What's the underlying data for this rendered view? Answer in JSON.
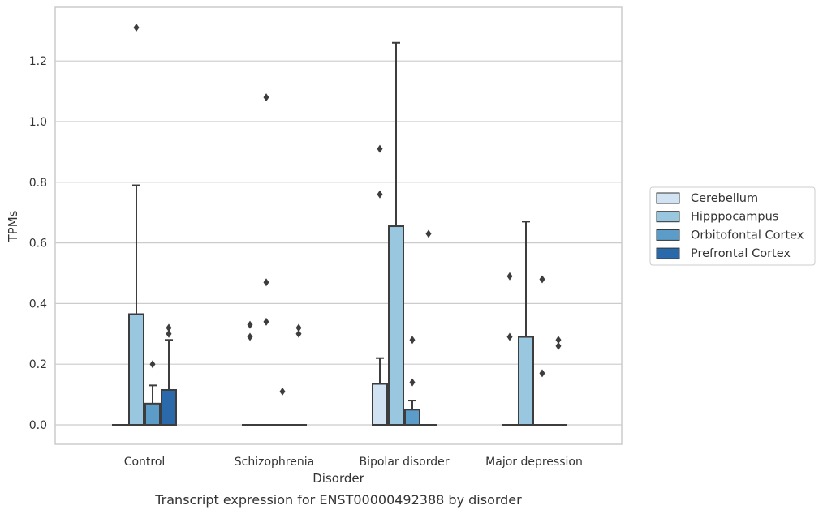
{
  "chart_data": {
    "type": "box",
    "title": "",
    "caption": "Transcript expression for ENST00000492388 by disorder",
    "xlabel": "Disorder",
    "ylabel": "TPMs",
    "ylim": [
      -0.065,
      1.38
    ],
    "yticks": [
      0.0,
      0.2,
      0.4,
      0.6,
      0.8,
      1.0,
      1.2
    ],
    "ytick_labels": [
      "0.0",
      "0.2",
      "0.4",
      "0.6",
      "0.8",
      "1.0",
      "1.2"
    ],
    "grid": "horizontal",
    "legend_position": "right",
    "categories": [
      "Control",
      "Schizophrenia",
      "Bipolar disorder",
      "Major depression"
    ],
    "series": [
      {
        "name": "Cerebellum",
        "color": "#d1e2f2",
        "boxes": [
          {
            "q1": 0,
            "median": 0,
            "q3": 0,
            "whisker_low": 0,
            "whisker_high": 0,
            "outliers": []
          },
          {
            "q1": 0,
            "median": 0,
            "q3": 0,
            "whisker_low": 0,
            "whisker_high": 0,
            "outliers": [
              0.29,
              0.33
            ]
          },
          {
            "q1": 0,
            "median": 0,
            "q3": 0.135,
            "whisker_low": 0,
            "whisker_high": 0.22,
            "outliers": [
              0.76,
              0.91
            ]
          },
          {
            "q1": 0,
            "median": 0,
            "q3": 0,
            "whisker_low": 0,
            "whisker_high": 0,
            "outliers": [
              0.29,
              0.49
            ]
          }
        ]
      },
      {
        "name": "Hipppocampus",
        "color": "#9ac7e0",
        "boxes": [
          {
            "q1": 0,
            "median": 0,
            "q3": 0.365,
            "whisker_low": 0,
            "whisker_high": 0.79,
            "outliers": [
              1.31
            ]
          },
          {
            "q1": 0,
            "median": 0,
            "q3": 0,
            "whisker_low": 0,
            "whisker_high": 0,
            "outliers": [
              0.34,
              0.47,
              1.08
            ]
          },
          {
            "q1": 0,
            "median": 0,
            "q3": 0.655,
            "whisker_low": 0,
            "whisker_high": 1.26,
            "outliers": []
          },
          {
            "q1": 0,
            "median": 0,
            "q3": 0.29,
            "whisker_low": 0,
            "whisker_high": 0.67,
            "outliers": []
          }
        ]
      },
      {
        "name": "Orbitofontal Cortex",
        "color": "#5b9cc8",
        "boxes": [
          {
            "q1": 0,
            "median": 0,
            "q3": 0.07,
            "whisker_low": 0,
            "whisker_high": 0.13,
            "outliers": [
              0.2
            ]
          },
          {
            "q1": 0,
            "median": 0,
            "q3": 0,
            "whisker_low": 0,
            "whisker_high": 0,
            "outliers": [
              0.11
            ]
          },
          {
            "q1": 0,
            "median": 0,
            "q3": 0.05,
            "whisker_low": 0,
            "whisker_high": 0.08,
            "outliers": [
              0.14,
              0.28
            ]
          },
          {
            "q1": 0,
            "median": 0,
            "q3": 0,
            "whisker_low": 0,
            "whisker_high": 0,
            "outliers": [
              0.17,
              0.48
            ]
          }
        ]
      },
      {
        "name": "Prefrontal Cortex",
        "color": "#2a6aaa",
        "boxes": [
          {
            "q1": 0,
            "median": 0,
            "q3": 0.115,
            "whisker_low": 0,
            "whisker_high": 0.28,
            "outliers": [
              0.3,
              0.32
            ]
          },
          {
            "q1": 0,
            "median": 0,
            "q3": 0,
            "whisker_low": 0,
            "whisker_high": 0,
            "outliers": [
              0.3,
              0.32
            ]
          },
          {
            "q1": 0,
            "median": 0,
            "q3": 0,
            "whisker_low": 0,
            "whisker_high": 0,
            "outliers": [
              0.63
            ]
          },
          {
            "q1": 0,
            "median": 0,
            "q3": 0,
            "whisker_low": 0,
            "whisker_high": 0,
            "outliers": [
              0.26,
              0.28
            ]
          }
        ]
      }
    ]
  }
}
